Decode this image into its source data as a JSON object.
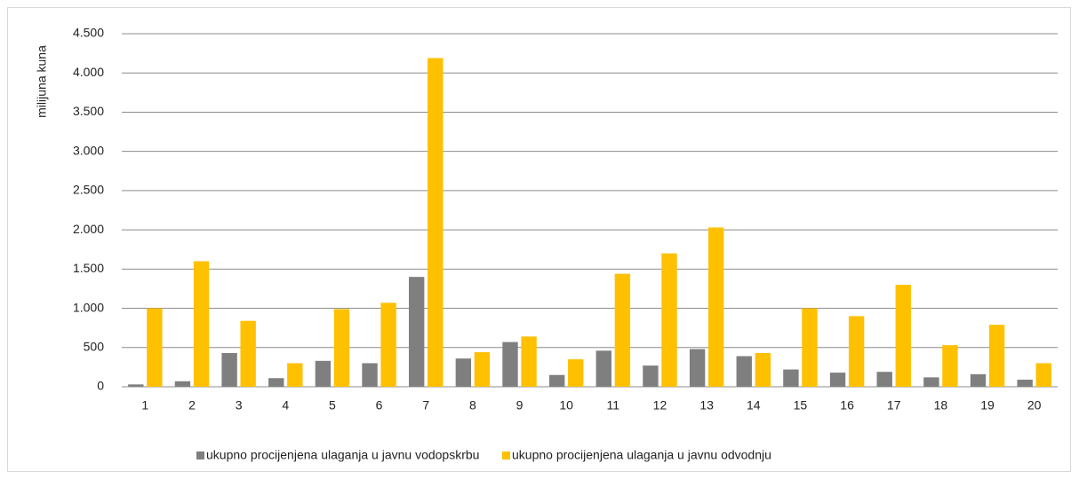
{
  "chart_data": {
    "type": "bar",
    "ylabel": "milijuna kuna",
    "categories": [
      "1",
      "2",
      "3",
      "4",
      "5",
      "6",
      "7",
      "8",
      "9",
      "10",
      "11",
      "12",
      "13",
      "14",
      "15",
      "16",
      "17",
      "18",
      "19",
      "20"
    ],
    "series": [
      {
        "name": "ukupno procijenjena ulaganja u javnu vodopskrbu",
        "color": "#7f7f7f",
        "values": [
          30,
          70,
          430,
          110,
          330,
          300,
          1400,
          360,
          570,
          150,
          460,
          270,
          480,
          390,
          220,
          180,
          190,
          120,
          160,
          90
        ]
      },
      {
        "name": "ukupno procijenjena ulaganja u javnu odvodnju",
        "color": "#ffc000",
        "values": [
          1000,
          1600,
          840,
          300,
          990,
          1070,
          4190,
          440,
          640,
          350,
          1440,
          1700,
          2030,
          430,
          1000,
          900,
          1300,
          530,
          790,
          300
        ]
      }
    ],
    "ylim": [
      0,
      4500
    ],
    "yticks": [
      0,
      500,
      {
        "value": 1000,
        "label": "1.000"
      },
      {
        "value": 1500,
        "label": "1.500"
      },
      {
        "value": 2000,
        "label": "2.000"
      },
      {
        "value": 2500,
        "label": "2.500"
      },
      {
        "value": 3000,
        "label": "3.000"
      },
      {
        "value": 3500,
        "label": "3.500"
      },
      {
        "value": 4000,
        "label": "4.000"
      },
      {
        "value": 4500,
        "label": "4.500"
      }
    ],
    "grid": true,
    "legend": "bottom"
  }
}
